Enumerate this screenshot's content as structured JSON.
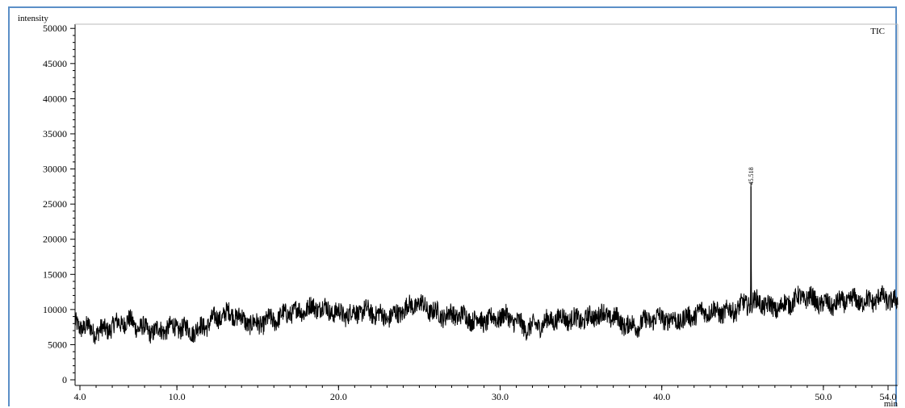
{
  "chart_data": {
    "type": "line",
    "ylabel": "intensity",
    "xlabel": "min",
    "series_label": "TIC",
    "xlim": [
      3.7,
      54.6
    ],
    "ylim": [
      -800,
      50600
    ],
    "x_ticks": [
      {
        "value": 4.0,
        "label": "4.0"
      },
      {
        "value": 10.0,
        "label": "10.0"
      },
      {
        "value": 20.0,
        "label": "20.0"
      },
      {
        "value": 30.0,
        "label": "30.0"
      },
      {
        "value": 40.0,
        "label": "40.0"
      },
      {
        "value": 50.0,
        "label": "50.0"
      },
      {
        "value": 54.0,
        "label": "54.0"
      }
    ],
    "y_ticks": [
      {
        "value": 0,
        "label": "0"
      },
      {
        "value": 5000,
        "label": "5000"
      },
      {
        "value": 10000,
        "label": "10000"
      },
      {
        "value": 15000,
        "label": "15000"
      },
      {
        "value": 20000,
        "label": "20000"
      },
      {
        "value": 25000,
        "label": "25000"
      },
      {
        "value": 30000,
        "label": "30000"
      },
      {
        "value": 35000,
        "label": "35000"
      },
      {
        "value": 40000,
        "label": "40000"
      },
      {
        "value": 45000,
        "label": "45000"
      },
      {
        "value": 50000,
        "label": "50000"
      }
    ],
    "baseline": {
      "x": [
        3.7,
        5.0,
        7.0,
        9.0,
        11.0,
        12.5,
        13.5,
        15.0,
        16.0,
        17.0,
        19.0,
        21.0,
        23.0,
        25.0,
        26.5,
        28.0,
        30.0,
        31.5,
        32.5,
        34.0,
        36.0,
        38.0,
        39.0,
        41.0,
        43.0,
        45.0,
        46.0,
        47.0,
        48.0,
        49.0,
        51.0,
        52.5,
        53.5,
        54.6
      ],
      "y": [
        7500,
        7200,
        8000,
        7000,
        7300,
        8500,
        9500,
        7800,
        8200,
        10000,
        10000,
        9500,
        9200,
        10500,
        9500,
        8500,
        9000,
        7500,
        8200,
        8500,
        9200,
        8000,
        8200,
        8800,
        9500,
        10500,
        10800,
        10500,
        11000,
        11500,
        10800,
        11200,
        12000,
        10500
      ]
    },
    "noise_amplitude": 1400,
    "peaks": [
      {
        "retention_time": 45.518,
        "height": 27500,
        "label": "45.518"
      }
    ]
  }
}
